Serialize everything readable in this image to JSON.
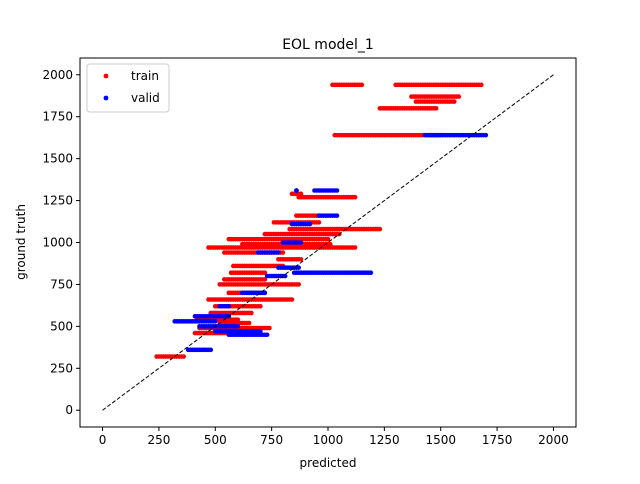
{
  "chart_data": {
    "type": "scatter",
    "title": "EOL model_1",
    "xlabel": "predicted",
    "ylabel": "ground truth",
    "xlim": [
      -100,
      2100
    ],
    "ylim": [
      -100,
      2100
    ],
    "xticks": [
      0,
      250,
      500,
      750,
      1000,
      1250,
      1500,
      1750,
      2000
    ],
    "yticks": [
      0,
      250,
      500,
      750,
      1000,
      1250,
      1500,
      1750,
      2000
    ],
    "grid": false,
    "legend_position": "top-left",
    "reference_line": {
      "style": "dashed",
      "color": "#000000",
      "from": [
        0,
        0
      ],
      "to": [
        2000,
        2000
      ]
    },
    "series": [
      {
        "name": "train",
        "color": "#ff0000",
        "strips": [
          {
            "y": 1940,
            "x": [
              1020,
              1150
            ]
          },
          {
            "y": 1940,
            "x": [
              1300,
              1680
            ]
          },
          {
            "y": 1870,
            "x": [
              1370,
              1580
            ]
          },
          {
            "y": 1840,
            "x": [
              1390,
              1560
            ]
          },
          {
            "y": 1800,
            "x": [
              1230,
              1480
            ]
          },
          {
            "y": 1640,
            "x": [
              1030,
              1500
            ]
          },
          {
            "y": 1290,
            "x": [
              840,
              880
            ]
          },
          {
            "y": 1270,
            "x": [
              870,
              1120
            ]
          },
          {
            "y": 1160,
            "x": [
              860,
              960
            ]
          },
          {
            "y": 1120,
            "x": [
              760,
              960
            ]
          },
          {
            "y": 1080,
            "x": [
              830,
              1230
            ]
          },
          {
            "y": 1050,
            "x": [
              720,
              1050
            ]
          },
          {
            "y": 1020,
            "x": [
              560,
              1000
            ]
          },
          {
            "y": 990,
            "x": [
              620,
              1010
            ]
          },
          {
            "y": 970,
            "x": [
              470,
              1120
            ]
          },
          {
            "y": 940,
            "x": [
              540,
              800
            ]
          },
          {
            "y": 900,
            "x": [
              780,
              880
            ]
          },
          {
            "y": 860,
            "x": [
              580,
              800
            ]
          },
          {
            "y": 820,
            "x": [
              570,
              720
            ]
          },
          {
            "y": 780,
            "x": [
              540,
              720
            ]
          },
          {
            "y": 750,
            "x": [
              520,
              870
            ]
          },
          {
            "y": 700,
            "x": [
              560,
              700
            ]
          },
          {
            "y": 660,
            "x": [
              470,
              840
            ]
          },
          {
            "y": 620,
            "x": [
              500,
              700
            ]
          },
          {
            "y": 580,
            "x": [
              480,
              660
            ]
          },
          {
            "y": 540,
            "x": [
              420,
              600
            ]
          },
          {
            "y": 520,
            "x": [
              520,
              650
            ]
          },
          {
            "y": 490,
            "x": [
              430,
              740
            ]
          },
          {
            "y": 460,
            "x": [
              410,
              620
            ]
          },
          {
            "y": 320,
            "x": [
              240,
              360
            ]
          }
        ]
      },
      {
        "name": "valid",
        "color": "#0000ff",
        "strips": [
          {
            "y": 1640,
            "x": [
              1430,
              1700
            ]
          },
          {
            "y": 1310,
            "x": [
              940,
              1040
            ]
          },
          {
            "y": 1310,
            "x": [
              860,
              860
            ]
          },
          {
            "y": 1160,
            "x": [
              960,
              1040
            ]
          },
          {
            "y": 1110,
            "x": [
              840,
              920
            ]
          },
          {
            "y": 1000,
            "x": [
              800,
              880
            ]
          },
          {
            "y": 940,
            "x": [
              690,
              780
            ]
          },
          {
            "y": 850,
            "x": [
              780,
              870
            ]
          },
          {
            "y": 820,
            "x": [
              850,
              1190
            ]
          },
          {
            "y": 800,
            "x": [
              730,
              810
            ]
          },
          {
            "y": 700,
            "x": [
              620,
              720
            ]
          },
          {
            "y": 620,
            "x": [
              520,
              560
            ]
          },
          {
            "y": 560,
            "x": [
              410,
              560
            ]
          },
          {
            "y": 530,
            "x": [
              320,
              500
            ]
          },
          {
            "y": 500,
            "x": [
              430,
              600
            ]
          },
          {
            "y": 470,
            "x": [
              500,
              700
            ]
          },
          {
            "y": 450,
            "x": [
              560,
              730
            ]
          },
          {
            "y": 360,
            "x": [
              380,
              480
            ]
          }
        ]
      }
    ]
  }
}
